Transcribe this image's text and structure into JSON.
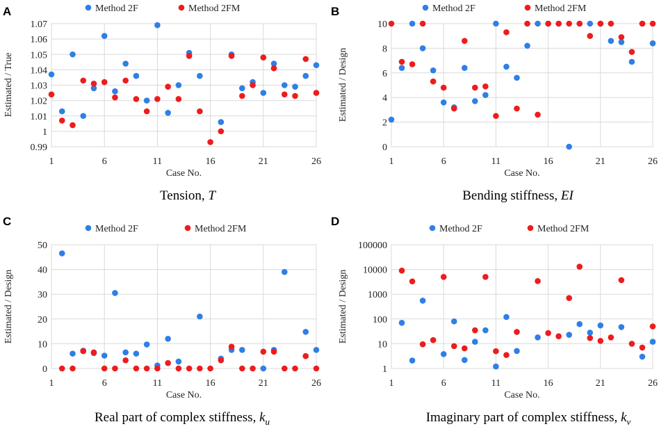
{
  "colors": {
    "method_2f": "#2f7fe6",
    "method_2fm": "#ee1c1c"
  },
  "chart_data": [
    {
      "panel": "A",
      "type": "scatter",
      "caption_main": "Tension, ",
      "caption_var": "T",
      "caption_sub": "",
      "xlabel": "Case No.",
      "ylabel": "Estimated / True",
      "yscale": "linear",
      "ylim": [
        0.99,
        1.07
      ],
      "yticks": [
        0.99,
        1,
        1.01,
        1.02,
        1.03,
        1.04,
        1.05,
        1.06,
        1.07
      ],
      "ytick_labels": [
        "0.99",
        "1",
        "1.01",
        "1.02",
        "1.03",
        "1.04",
        "1.05",
        "1.06",
        "1.07"
      ],
      "xlim": [
        1,
        26
      ],
      "xticks": [
        1,
        6,
        11,
        16,
        21,
        26
      ],
      "xtick_labels": [
        "1",
        "6",
        "11",
        "16",
        "21",
        "26"
      ],
      "series": [
        {
          "name": "Method 2F",
          "x": [
            1,
            2,
            3,
            4,
            5,
            6,
            7,
            8,
            9,
            10,
            11,
            12,
            13,
            14,
            15,
            16,
            17,
            18,
            19,
            20,
            21,
            22,
            23,
            24,
            25,
            26
          ],
          "values": [
            1.037,
            1.013,
            1.05,
            1.01,
            1.028,
            1.062,
            1.026,
            1.044,
            1.036,
            1.02,
            1.069,
            1.012,
            1.03,
            1.051,
            1.036,
            null,
            1.006,
            1.05,
            1.028,
            1.032,
            1.025,
            1.044,
            1.03,
            1.029,
            1.036,
            1.043
          ]
        },
        {
          "name": "Method 2FM",
          "x": [
            1,
            2,
            3,
            4,
            5,
            6,
            7,
            8,
            9,
            10,
            11,
            12,
            13,
            14,
            15,
            16,
            17,
            18,
            19,
            20,
            21,
            22,
            23,
            24,
            25,
            26
          ],
          "values": [
            1.024,
            1.007,
            1.004,
            1.033,
            1.031,
            1.032,
            1.022,
            1.033,
            1.021,
            1.013,
            1.021,
            1.029,
            1.021,
            1.049,
            1.013,
            0.993,
            1.0,
            1.049,
            1.023,
            1.03,
            1.048,
            1.041,
            1.024,
            1.023,
            1.047,
            1.025
          ]
        }
      ]
    },
    {
      "panel": "B",
      "type": "scatter",
      "caption_main": "Bending stiffness, ",
      "caption_var": "EI",
      "caption_sub": "",
      "xlabel": "Case No.",
      "ylabel": "Estimated / Design",
      "yscale": "linear",
      "ylim": [
        0,
        10
      ],
      "yticks": [
        0,
        2,
        4,
        6,
        8,
        10
      ],
      "ytick_labels": [
        "0",
        "2",
        "4",
        "6",
        "8",
        "10"
      ],
      "xlim": [
        1,
        26
      ],
      "xticks": [
        1,
        6,
        11,
        16,
        21,
        26
      ],
      "xtick_labels": [
        "1",
        "6",
        "11",
        "16",
        "21",
        "26"
      ],
      "series": [
        {
          "name": "Method 2F",
          "x": [
            1,
            2,
            3,
            4,
            5,
            6,
            7,
            8,
            9,
            10,
            11,
            12,
            13,
            14,
            15,
            16,
            17,
            18,
            19,
            20,
            21,
            22,
            23,
            24,
            25,
            26
          ],
          "values": [
            2.2,
            6.4,
            10,
            8.0,
            6.2,
            3.6,
            3.2,
            6.4,
            3.7,
            4.2,
            10,
            6.5,
            5.6,
            8.2,
            10,
            10,
            10,
            0,
            10,
            10,
            10,
            8.6,
            8.5,
            6.9,
            10,
            8.4
          ]
        },
        {
          "name": "Method 2FM",
          "x": [
            1,
            2,
            3,
            4,
            5,
            6,
            7,
            8,
            9,
            10,
            11,
            12,
            13,
            14,
            15,
            16,
            17,
            18,
            19,
            20,
            21,
            22,
            23,
            24,
            25,
            26
          ],
          "values": [
            10,
            6.9,
            6.7,
            10,
            5.3,
            4.8,
            3.1,
            8.6,
            4.8,
            4.9,
            2.5,
            9.3,
            3.1,
            10,
            2.6,
            10,
            10,
            10,
            10,
            9.0,
            10,
            10,
            8.9,
            7.7,
            10,
            10
          ]
        }
      ]
    },
    {
      "panel": "C",
      "type": "scatter",
      "caption_main": "Real part of complex stiffness, ",
      "caption_var": "k",
      "caption_sub": "u",
      "xlabel": "Case No.",
      "ylabel": "Estimated / Design",
      "yscale": "linear",
      "ylim": [
        0,
        50
      ],
      "yticks": [
        0,
        10,
        20,
        30,
        40,
        50
      ],
      "ytick_labels": [
        "0",
        "10",
        "20",
        "30",
        "40",
        "50"
      ],
      "xlim": [
        1,
        26
      ],
      "xticks": [
        1,
        6,
        11,
        16,
        21,
        26
      ],
      "xtick_labels": [
        "1",
        "6",
        "11",
        "16",
        "21",
        "26"
      ],
      "series": [
        {
          "name": "Method 2F",
          "x": [
            2,
            3,
            4,
            5,
            6,
            7,
            8,
            9,
            10,
            11,
            12,
            13,
            14,
            15,
            16,
            17,
            18,
            19,
            20,
            21,
            22,
            23,
            24,
            25,
            26
          ],
          "values": [
            46.5,
            6.0,
            7.2,
            6.2,
            5.2,
            30.5,
            6.5,
            6.0,
            9.7,
            1.2,
            12.0,
            2.8,
            null,
            21.0,
            null,
            4.0,
            7.5,
            7.5,
            null,
            0,
            7.5,
            39.0,
            null,
            14.8,
            7.5
          ]
        },
        {
          "name": "Method 2FM",
          "x": [
            2,
            3,
            4,
            5,
            6,
            7,
            8,
            9,
            10,
            11,
            12,
            13,
            14,
            15,
            16,
            17,
            18,
            19,
            20,
            21,
            22,
            23,
            24,
            25,
            26
          ],
          "values": [
            0,
            0,
            7.0,
            6.5,
            0,
            0,
            3.3,
            0,
            0,
            0,
            2.2,
            0,
            0,
            0,
            0,
            3.3,
            8.8,
            0,
            0,
            6.8,
            6.8,
            0,
            0,
            5.0,
            0
          ]
        }
      ]
    },
    {
      "panel": "D",
      "type": "scatter",
      "caption_main": "Imaginary part of complex stiffness, ",
      "caption_var": "k",
      "caption_sub": "v",
      "xlabel": "Case No.",
      "ylabel": "Estimated / Design",
      "yscale": "log",
      "ylim": [
        1,
        100000
      ],
      "yticks": [
        1,
        10,
        100,
        1000,
        10000,
        100000
      ],
      "ytick_labels": [
        "1",
        "10",
        "100",
        "1000",
        "10000",
        "100000"
      ],
      "xlim": [
        1,
        26
      ],
      "xticks": [
        1,
        6,
        11,
        16,
        21,
        26
      ],
      "xtick_labels": [
        "1",
        "6",
        "11",
        "16",
        "21",
        "26"
      ],
      "series": [
        {
          "name": "Method 2F",
          "x": [
            2,
            3,
            4,
            6,
            7,
            8,
            9,
            10,
            11,
            12,
            13,
            15,
            18,
            19,
            20,
            21,
            23,
            25,
            26
          ],
          "values": [
            70,
            2.1,
            550,
            3.8,
            80,
            2.2,
            12,
            35,
            1.2,
            120,
            5.1,
            18,
            23,
            62,
            28,
            55,
            47,
            3.0,
            12
          ]
        },
        {
          "name": "Method 2FM",
          "x": [
            2,
            3,
            4,
            5,
            6,
            7,
            8,
            9,
            10,
            11,
            12,
            13,
            15,
            16,
            17,
            18,
            19,
            20,
            21,
            22,
            23,
            24,
            25,
            26
          ],
          "values": [
            9000,
            3300,
            9.5,
            14,
            5000,
            8,
            6.5,
            35,
            5000,
            5,
            3.5,
            30,
            3400,
            27,
            20,
            700,
            13000,
            17,
            13,
            18,
            3700,
            10,
            7,
            50
          ]
        }
      ]
    }
  ]
}
